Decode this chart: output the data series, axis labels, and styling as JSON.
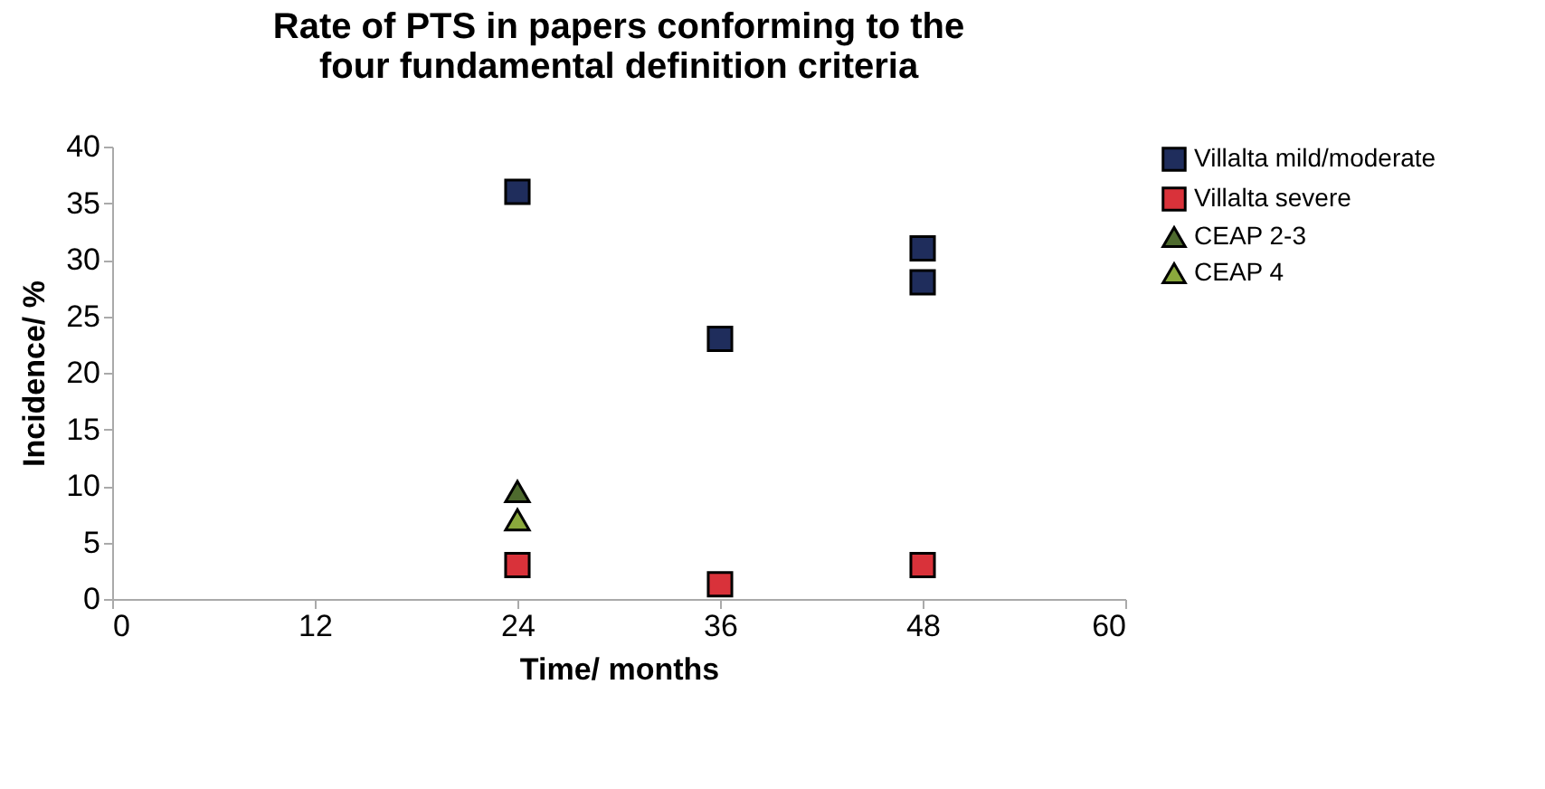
{
  "chart_data": {
    "type": "scatter",
    "title": "Rate of PTS in papers conforming to the  four fundamental definition criteria",
    "xlabel": "Time/ months",
    "ylabel": "Incidence/ %",
    "xlim": [
      0,
      60
    ],
    "xticks": [
      0,
      12,
      24,
      36,
      48,
      60
    ],
    "ylim": [
      0,
      40
    ],
    "yticks": [
      0,
      5,
      10,
      15,
      20,
      25,
      30,
      35,
      40
    ],
    "grid": false,
    "legend": "right",
    "series": [
      {
        "name": "Villalta mild/moderate",
        "color": "#1f2d5c",
        "marker": "square",
        "x": [
          24,
          36,
          48,
          48
        ],
        "values": [
          36,
          23,
          31,
          28
        ]
      },
      {
        "name": "Villalta severe",
        "color": "#d9323a",
        "marker": "square",
        "x": [
          24,
          36,
          48
        ],
        "values": [
          3,
          1.3,
          3
        ]
      },
      {
        "name": "CEAP 2-3",
        "color": "#4e6a2e",
        "marker": "triangle",
        "x": [
          24
        ],
        "values": [
          9.5
        ]
      },
      {
        "name": "CEAP 4",
        "color": "#8aa83c",
        "marker": "triangle",
        "x": [
          24
        ],
        "values": [
          7
        ]
      }
    ]
  }
}
